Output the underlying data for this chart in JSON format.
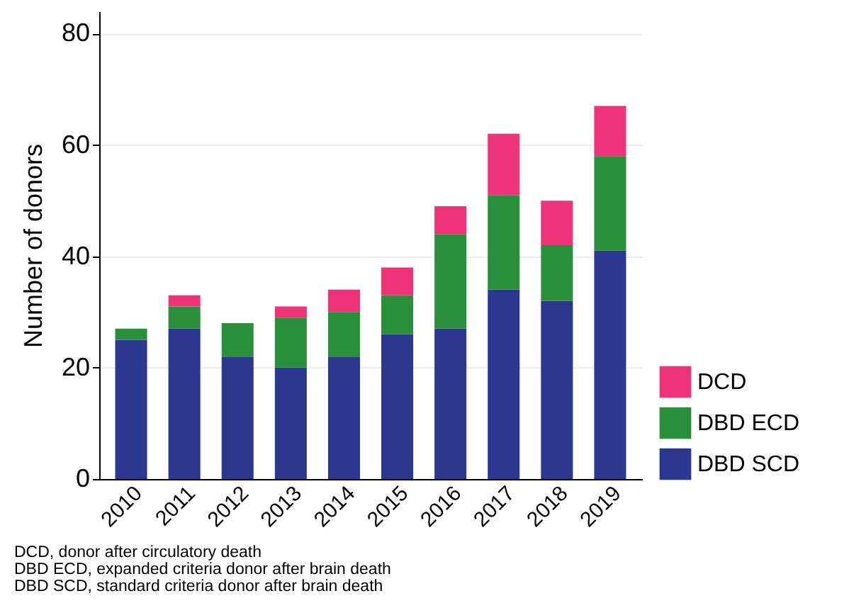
{
  "chart_data": {
    "type": "bar",
    "stacked": true,
    "ylabel": "Number of donors",
    "categories": [
      "2010",
      "2011",
      "2012",
      "2013",
      "2014",
      "2015",
      "2016",
      "2017",
      "2018",
      "2019"
    ],
    "series": [
      {
        "name": "DBD SCD",
        "color": "#2c388f",
        "values": [
          25,
          27,
          22,
          20,
          22,
          26,
          27,
          34,
          32,
          41
        ]
      },
      {
        "name": "DBD ECD",
        "color": "#2a8f3b",
        "values": [
          2,
          4,
          6,
          9,
          8,
          7,
          17,
          17,
          10,
          17
        ]
      },
      {
        "name": "DCD",
        "color": "#ee3378",
        "values": [
          0,
          2,
          0,
          2,
          4,
          5,
          5,
          11,
          8,
          9
        ]
      }
    ],
    "ylim": [
      0,
      84
    ],
    "yticks": [
      0,
      20,
      40,
      60,
      80
    ],
    "grid": "y",
    "legend": "bottom right",
    "annotations": [
      "DCD, donor after circulatory death",
      "DBD ECD, expanded criteria donor after brain death",
      "DBD SCD, standard criteria donor after brain death"
    ]
  }
}
